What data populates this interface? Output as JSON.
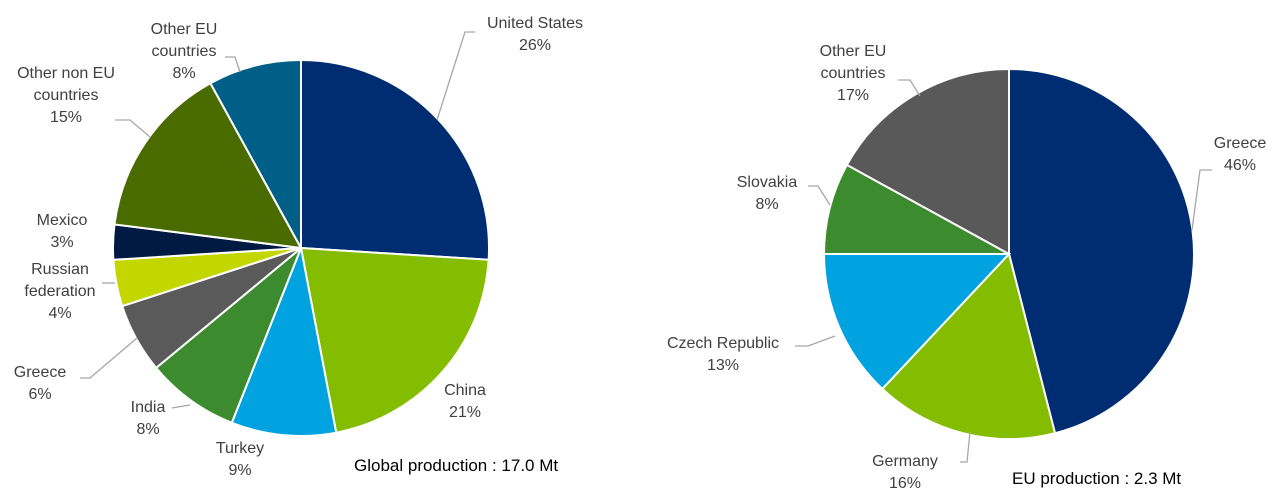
{
  "chart_data": [
    {
      "type": "pie",
      "categories": [
        "United States",
        "China",
        "Turkey",
        "India",
        "Greece",
        "Russian federation",
        "Mexico",
        "Other non EU countries",
        "Other EU countries"
      ],
      "values": [
        26,
        21,
        9,
        8,
        6,
        4,
        3,
        15,
        8
      ],
      "value_labels": [
        "26%",
        "21%",
        "9%",
        "8%",
        "6%",
        "4%",
        "3%",
        "15%",
        "8%"
      ],
      "colors": [
        "#002d72",
        "#84bd00",
        "#00a3e0",
        "#3d8b2f",
        "#5a5a5a",
        "#c4d600",
        "#001a43",
        "#4a6b00",
        "#005f87"
      ],
      "annotation": "Global production : 17.0 Mt"
    },
    {
      "type": "pie",
      "categories": [
        "Greece",
        "Germany",
        "Czech Republic",
        "Slovakia",
        "Other EU countries"
      ],
      "values": [
        46,
        16,
        13,
        8,
        17
      ],
      "value_labels": [
        "46%",
        "16%",
        "13%",
        "8%",
        "17%"
      ],
      "colors": [
        "#002d72",
        "#84bd00",
        "#00a3e0",
        "#3d8b2f",
        "#595959"
      ],
      "annotation": "EU production : 2.3 Mt"
    }
  ]
}
